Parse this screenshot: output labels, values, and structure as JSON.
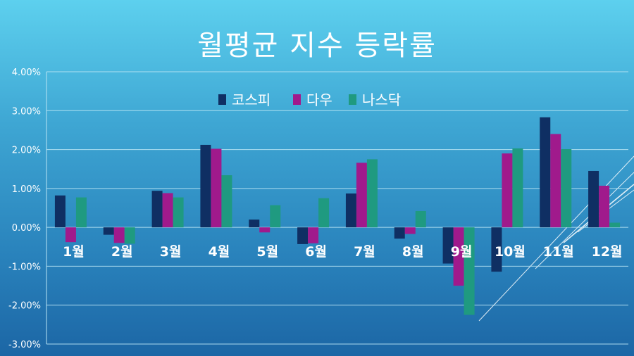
{
  "colors": {
    "코스피": "#0f2f63",
    "다우": "#a01a8c",
    "나스닥": "#1f9a80",
    "grid": "#b9e4f4"
  },
  "chart_data": {
    "type": "bar",
    "title": "월평균 지수 등락률",
    "categories": [
      "1월",
      "2월",
      "3월",
      "4월",
      "5월",
      "6월",
      "7월",
      "8월",
      "9월",
      "10월",
      "11월",
      "12월"
    ],
    "series": [
      {
        "name": "코스피",
        "values": [
          0.0082,
          -0.0019,
          0.0094,
          0.0212,
          0.002,
          -0.0043,
          0.0087,
          -0.0029,
          -0.0093,
          -0.0114,
          0.0283,
          0.0145
        ]
      },
      {
        "name": "다우",
        "values": [
          -0.0038,
          -0.004,
          0.0088,
          0.0202,
          -0.0013,
          -0.0041,
          0.0166,
          -0.0017,
          -0.015,
          0.019,
          0.024,
          0.0107
        ]
      },
      {
        "name": "나스닥",
        "values": [
          0.0077,
          -0.0042,
          0.0077,
          0.0134,
          0.0057,
          0.0075,
          0.0175,
          0.0042,
          -0.0225,
          0.0203,
          0.0201,
          0.0012
        ]
      }
    ],
    "ylim": [
      -0.03,
      0.04
    ],
    "yticks": [
      "-3.00%",
      "-2.00%",
      "-1.00%",
      "0.00%",
      "1.00%",
      "2.00%",
      "3.00%",
      "4.00%"
    ],
    "xlabel": "",
    "ylabel": "",
    "grid": true,
    "legend_position": "top"
  }
}
